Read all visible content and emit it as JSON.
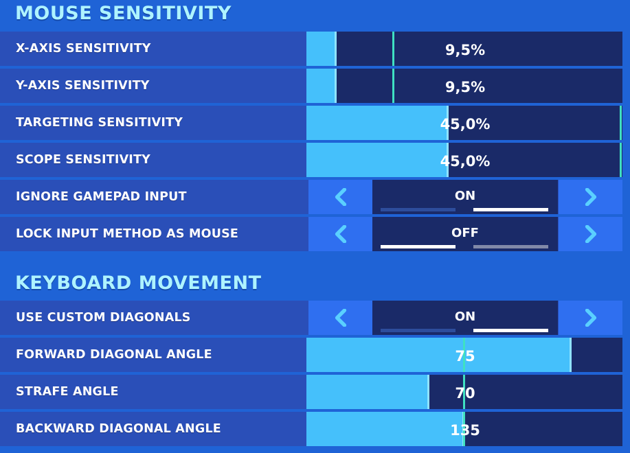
{
  "sections": [
    {
      "title": "MOUSE SENSITIVITY",
      "rows": [
        {
          "label": "X-AXIS SENSITIVITY",
          "type": "slider",
          "value": "9,5%",
          "fill_percent": 9.5,
          "marker_percent": 27.5
        },
        {
          "label": "Y-AXIS SENSITIVITY",
          "type": "slider",
          "value": "9,5%",
          "fill_percent": 9.5,
          "marker_percent": 27.5
        },
        {
          "label": "TARGETING SENSITIVITY",
          "type": "slider",
          "value": "45,0%",
          "fill_percent": 45.0,
          "marker_percent": 99.5
        },
        {
          "label": "SCOPE SENSITIVITY",
          "type": "slider",
          "value": "45,0%",
          "fill_percent": 45.0,
          "marker_percent": 99.5
        },
        {
          "label": "IGNORE GAMEPAD INPUT",
          "type": "toggle",
          "value": "ON",
          "on": true
        },
        {
          "label": "LOCK INPUT METHOD AS MOUSE",
          "type": "toggle",
          "value": "OFF",
          "on": false
        }
      ]
    },
    {
      "title": "KEYBOARD MOVEMENT",
      "rows": [
        {
          "label": "USE CUSTOM DIAGONALS",
          "type": "toggle",
          "value": "ON",
          "on": true
        },
        {
          "label": "FORWARD DIAGONAL ANGLE",
          "type": "slider",
          "value": "75",
          "fill_percent": 84.0,
          "marker_percent": 50.0
        },
        {
          "label": "STRAFE ANGLE",
          "type": "slider",
          "value": "70",
          "fill_percent": 39.0,
          "marker_percent": 50.0
        },
        {
          "label": "BACKWARD DIAGONAL ANGLE",
          "type": "slider",
          "value": "135",
          "fill_percent": 50.0,
          "marker_percent": 50.0
        }
      ]
    }
  ],
  "colors": {
    "background": "#1f63d6",
    "row": "#2a4fb8",
    "slider_track": "#1a2a68",
    "slider_fill": "#45c0fb",
    "marker": "#3fe0c2",
    "title": "#aef3ff"
  },
  "icons": {
    "prev": "chevron-left-icon",
    "next": "chevron-right-icon"
  }
}
